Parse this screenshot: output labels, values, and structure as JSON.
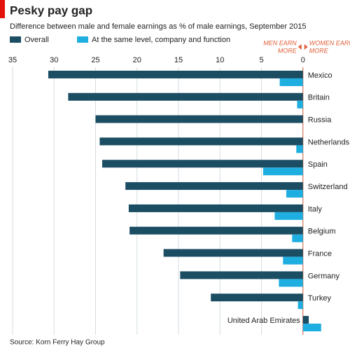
{
  "chart_data": {
    "type": "hbar",
    "title": "Pesky pay gap",
    "subtitle": "Difference between male and female earnings as % of male earnings, September 2015",
    "source": "Source: Korn Ferry Hay Group",
    "annotation_left": [
      "MEN EARN",
      "MORE"
    ],
    "annotation_right": [
      "WOMEN EARN",
      "MORE"
    ],
    "categories": [
      "Mexico",
      "Britain",
      "Russia",
      "Netherlands",
      "Spain",
      "Switzerland",
      "Italy",
      "Belgium",
      "France",
      "Germany",
      "Turkey",
      "United Arab Emirates"
    ],
    "series": [
      {
        "name": "Overall",
        "color": "#1b4d63",
        "values": [
          30.7,
          28.3,
          25.0,
          24.5,
          24.2,
          21.4,
          21.0,
          20.9,
          16.8,
          14.8,
          11.1,
          -0.7
        ]
      },
      {
        "name": "At the same level, company and function",
        "color": "#1eaee0",
        "values": [
          2.8,
          0.7,
          0,
          0.8,
          4.8,
          2.0,
          3.4,
          1.3,
          2.4,
          2.9,
          0.6,
          -2.2
        ]
      }
    ],
    "xlim": [
      35,
      -5
    ],
    "xticks": [
      35,
      30,
      25,
      20,
      15,
      10,
      5,
      0
    ],
    "grid": true
  }
}
